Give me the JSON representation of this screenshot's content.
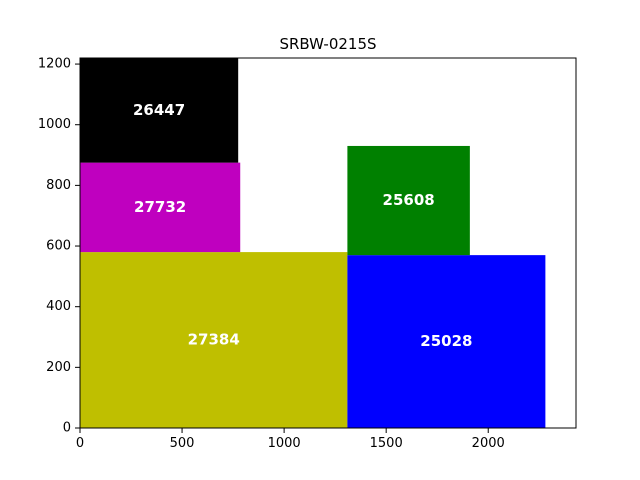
{
  "chart_data": {
    "type": "treemap",
    "title": "SRBW-0215S",
    "xlabel": "",
    "ylabel": "",
    "xlim": [
      0,
      2430
    ],
    "ylim": [
      0,
      1220
    ],
    "x_ticks": [
      {
        "value": 0,
        "label": "0"
      },
      {
        "value": 500,
        "label": "500"
      },
      {
        "value": 1000,
        "label": "1000"
      },
      {
        "value": 1500,
        "label": "1500"
      },
      {
        "value": 2000,
        "label": "2000"
      }
    ],
    "y_ticks": [
      {
        "value": 0,
        "label": "0"
      },
      {
        "value": 200,
        "label": "200"
      },
      {
        "value": 400,
        "label": "400"
      },
      {
        "value": 600,
        "label": "600"
      },
      {
        "value": 800,
        "label": "800"
      },
      {
        "value": 1000,
        "label": "1000"
      },
      {
        "value": 1200,
        "label": "1200"
      }
    ],
    "grid": false,
    "rects": [
      {
        "label": "27384",
        "x0": 0,
        "x1": 1310,
        "y0": 0,
        "y1": 580,
        "color": "#bfbf00"
      },
      {
        "label": "27732",
        "x0": 0,
        "x1": 785,
        "y0": 580,
        "y1": 875,
        "color": "#bf00bf"
      },
      {
        "label": "26447",
        "x0": 0,
        "x1": 775,
        "y0": 875,
        "y1": 1220,
        "color": "#000000"
      },
      {
        "label": "25028",
        "x0": 1310,
        "x1": 2280,
        "y0": 0,
        "y1": 570,
        "color": "#0000ff"
      },
      {
        "label": "25608",
        "x0": 1310,
        "x1": 1910,
        "y0": 570,
        "y1": 930,
        "color": "#008000"
      }
    ]
  }
}
